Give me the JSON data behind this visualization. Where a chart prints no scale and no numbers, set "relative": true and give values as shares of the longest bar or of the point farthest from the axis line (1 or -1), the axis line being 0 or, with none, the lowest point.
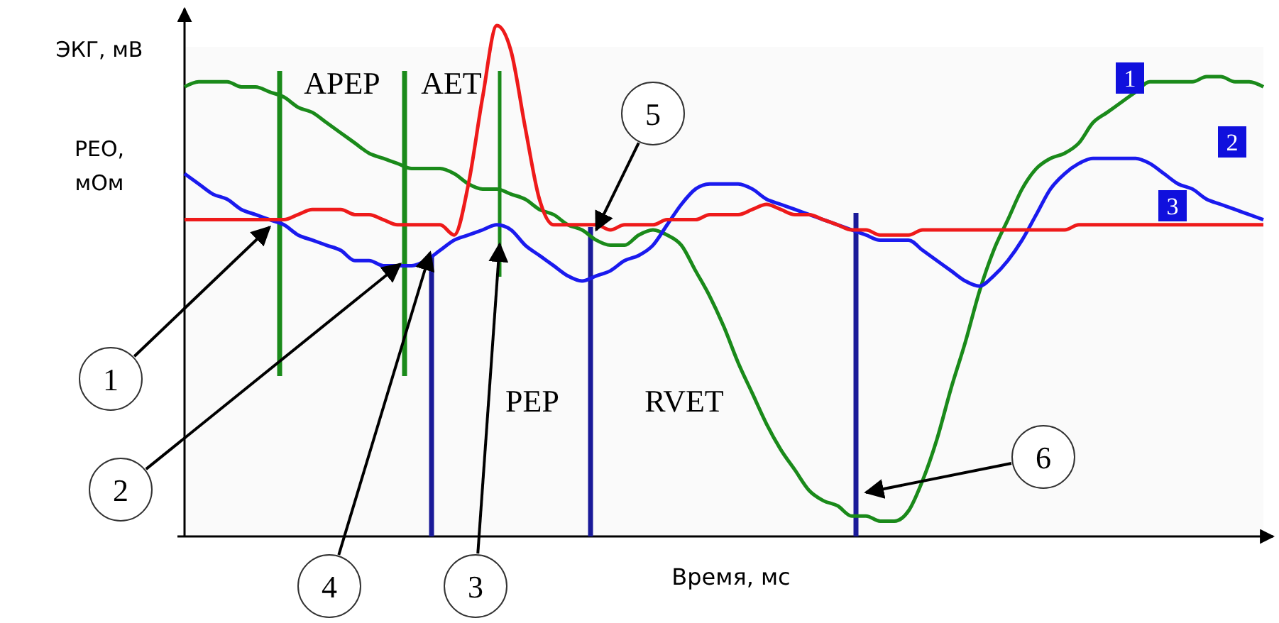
{
  "chart_data": {
    "type": "line",
    "relative": true,
    "ylabel": "ЭКГ, мВ",
    "xlabel": "Время, мс",
    "legend": false,
    "marker": "none",
    "line_style": "solid",
    "categories": [
      null,
      null,
      null,
      null,
      null,
      null,
      null,
      null,
      null,
      null,
      null,
      null,
      null,
      null,
      null,
      null,
      null,
      null,
      null,
      null,
      null,
      null,
      null,
      null,
      null,
      null,
      null,
      null,
      null,
      null,
      null,
      null,
      null,
      null,
      null,
      null,
      null,
      null,
      null,
      null,
      null,
      null,
      null,
      null,
      null,
      null,
      null,
      null,
      null,
      null,
      null,
      null,
      null,
      null,
      null,
      null,
      null,
      null,
      null,
      null,
      null,
      null,
      null,
      null,
      null,
      null,
      null,
      null,
      null,
      null,
      null,
      null,
      null,
      null,
      null,
      null,
      null
    ],
    "series": [
      {
        "name": "1",
        "color": "#1a8a1a",
        "values": [
          0.88,
          0.89,
          0.89,
          0.89,
          0.88,
          0.88,
          0.87,
          0.86,
          0.84,
          0.83,
          0.81,
          0.79,
          0.77,
          0.75,
          0.74,
          0.73,
          0.72,
          0.72,
          0.72,
          0.71,
          0.69,
          0.68,
          0.68,
          0.67,
          0.66,
          0.64,
          0.63,
          0.61,
          0.6,
          0.58,
          0.57,
          0.57,
          0.59,
          0.6,
          0.59,
          0.57,
          0.52,
          0.47,
          0.41,
          0.34,
          0.28,
          0.22,
          0.17,
          0.13,
          0.09,
          0.07,
          0.06,
          0.04,
          0.04,
          0.03,
          0.03,
          0.05,
          0.11,
          0.19,
          0.29,
          0.38,
          0.48,
          0.56,
          0.62,
          0.68,
          0.72,
          0.74,
          0.75,
          0.77,
          0.81,
          0.83,
          0.85,
          0.87,
          0.89,
          0.89,
          0.89,
          0.89,
          0.9,
          0.9,
          0.89,
          0.89,
          0.88
        ]
      },
      {
        "name": "2",
        "color": "#1a1aee",
        "values": [
          0.71,
          0.69,
          0.67,
          0.66,
          0.64,
          0.63,
          0.62,
          0.61,
          0.59,
          0.58,
          0.57,
          0.56,
          0.54,
          0.54,
          0.53,
          0.53,
          0.53,
          0.54,
          0.56,
          0.58,
          0.59,
          0.6,
          0.61,
          0.6,
          0.57,
          0.55,
          0.53,
          0.51,
          0.5,
          0.51,
          0.52,
          0.54,
          0.55,
          0.57,
          0.61,
          0.65,
          0.68,
          0.69,
          0.69,
          0.69,
          0.68,
          0.66,
          0.65,
          0.64,
          0.63,
          0.62,
          0.61,
          0.6,
          0.59,
          0.58,
          0.58,
          0.58,
          0.56,
          0.54,
          0.52,
          0.5,
          0.49,
          0.51,
          0.54,
          0.58,
          0.63,
          0.68,
          0.71,
          0.73,
          0.74,
          0.74,
          0.74,
          0.74,
          0.73,
          0.71,
          0.69,
          0.68,
          0.66,
          0.65,
          0.64,
          0.63,
          0.62
        ]
      },
      {
        "name": "3",
        "color": "#ee1a1a",
        "values": [
          0.62,
          0.62,
          0.62,
          0.62,
          0.62,
          0.62,
          0.62,
          0.62,
          0.63,
          0.64,
          0.64,
          0.64,
          0.63,
          0.63,
          0.62,
          0.61,
          0.61,
          0.61,
          0.61,
          0.59,
          0.69,
          0.86,
          1,
          0.95,
          0.8,
          0.66,
          0.61,
          0.61,
          0.61,
          0.61,
          0.6,
          0.61,
          0.61,
          0.61,
          0.62,
          0.62,
          0.62,
          0.63,
          0.63,
          0.63,
          0.64,
          0.65,
          0.64,
          0.63,
          0.63,
          0.62,
          0.61,
          0.6,
          0.6,
          0.59,
          0.59,
          0.59,
          0.6,
          0.6,
          0.6,
          0.6,
          0.6,
          0.6,
          0.6,
          0.6,
          0.6,
          0.6,
          0.6,
          0.61,
          0.61,
          0.61,
          0.61,
          0.61,
          0.61,
          0.61,
          0.61,
          0.61,
          0.61,
          0.61,
          0.61,
          0.61,
          0.61
        ]
      }
    ],
    "annotations": [
      "APEP",
      "AET",
      "PEP",
      "RVET",
      "РЕО, мОм",
      "1",
      "2",
      "3",
      "4",
      "5",
      "6"
    ]
  }
}
